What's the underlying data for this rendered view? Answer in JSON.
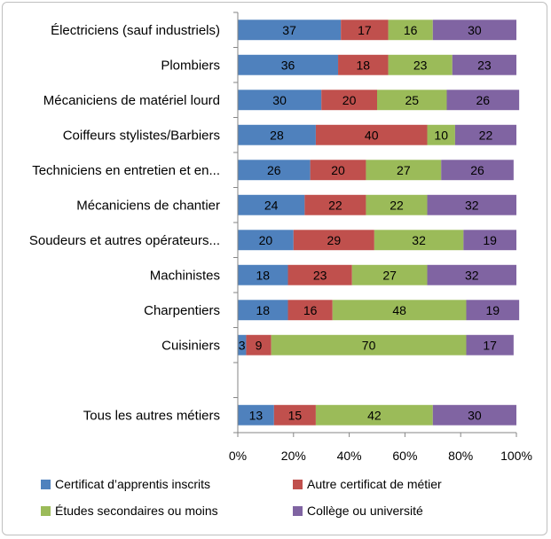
{
  "chart_data": {
    "type": "bar",
    "orientation": "horizontal",
    "stacked": "percent",
    "categories": [
      "Électriciens (sauf industriels)",
      "Plombiers",
      "Mécaniciens de matériel lourd",
      "Coiffeurs stylistes/Barbiers",
      "Techniciens en entretien et en...",
      "Mécaniciens de chantier",
      "Soudeurs et autres opérateurs...",
      "Machinistes",
      "Charpentiers",
      "Cuisiniers",
      "",
      "Tous les autres métiers"
    ],
    "series": [
      {
        "name": "Certificat d’apprentis inscrits",
        "color": "#4f81bd",
        "values": [
          37,
          36,
          30,
          28,
          26,
          24,
          20,
          18,
          18,
          3,
          null,
          13
        ]
      },
      {
        "name": "Autre certificat de métier",
        "color": "#c0504d",
        "values": [
          17,
          18,
          20,
          40,
          20,
          22,
          29,
          23,
          16,
          9,
          null,
          15
        ]
      },
      {
        "name": "Études secondaires ou moins",
        "color": "#9bbb59",
        "values": [
          16,
          23,
          25,
          10,
          27,
          22,
          32,
          27,
          48,
          70,
          null,
          42
        ]
      },
      {
        "name": "Collège ou université",
        "color": "#8064a2",
        "values": [
          30,
          23,
          26,
          22,
          26,
          32,
          19,
          32,
          19,
          17,
          null,
          30
        ]
      }
    ],
    "x_ticks": [
      "0%",
      "20%",
      "40%",
      "60%",
      "80%",
      "100%"
    ],
    "xlim": [
      0,
      100
    ],
    "grid": false,
    "legend_position": "bottom"
  }
}
